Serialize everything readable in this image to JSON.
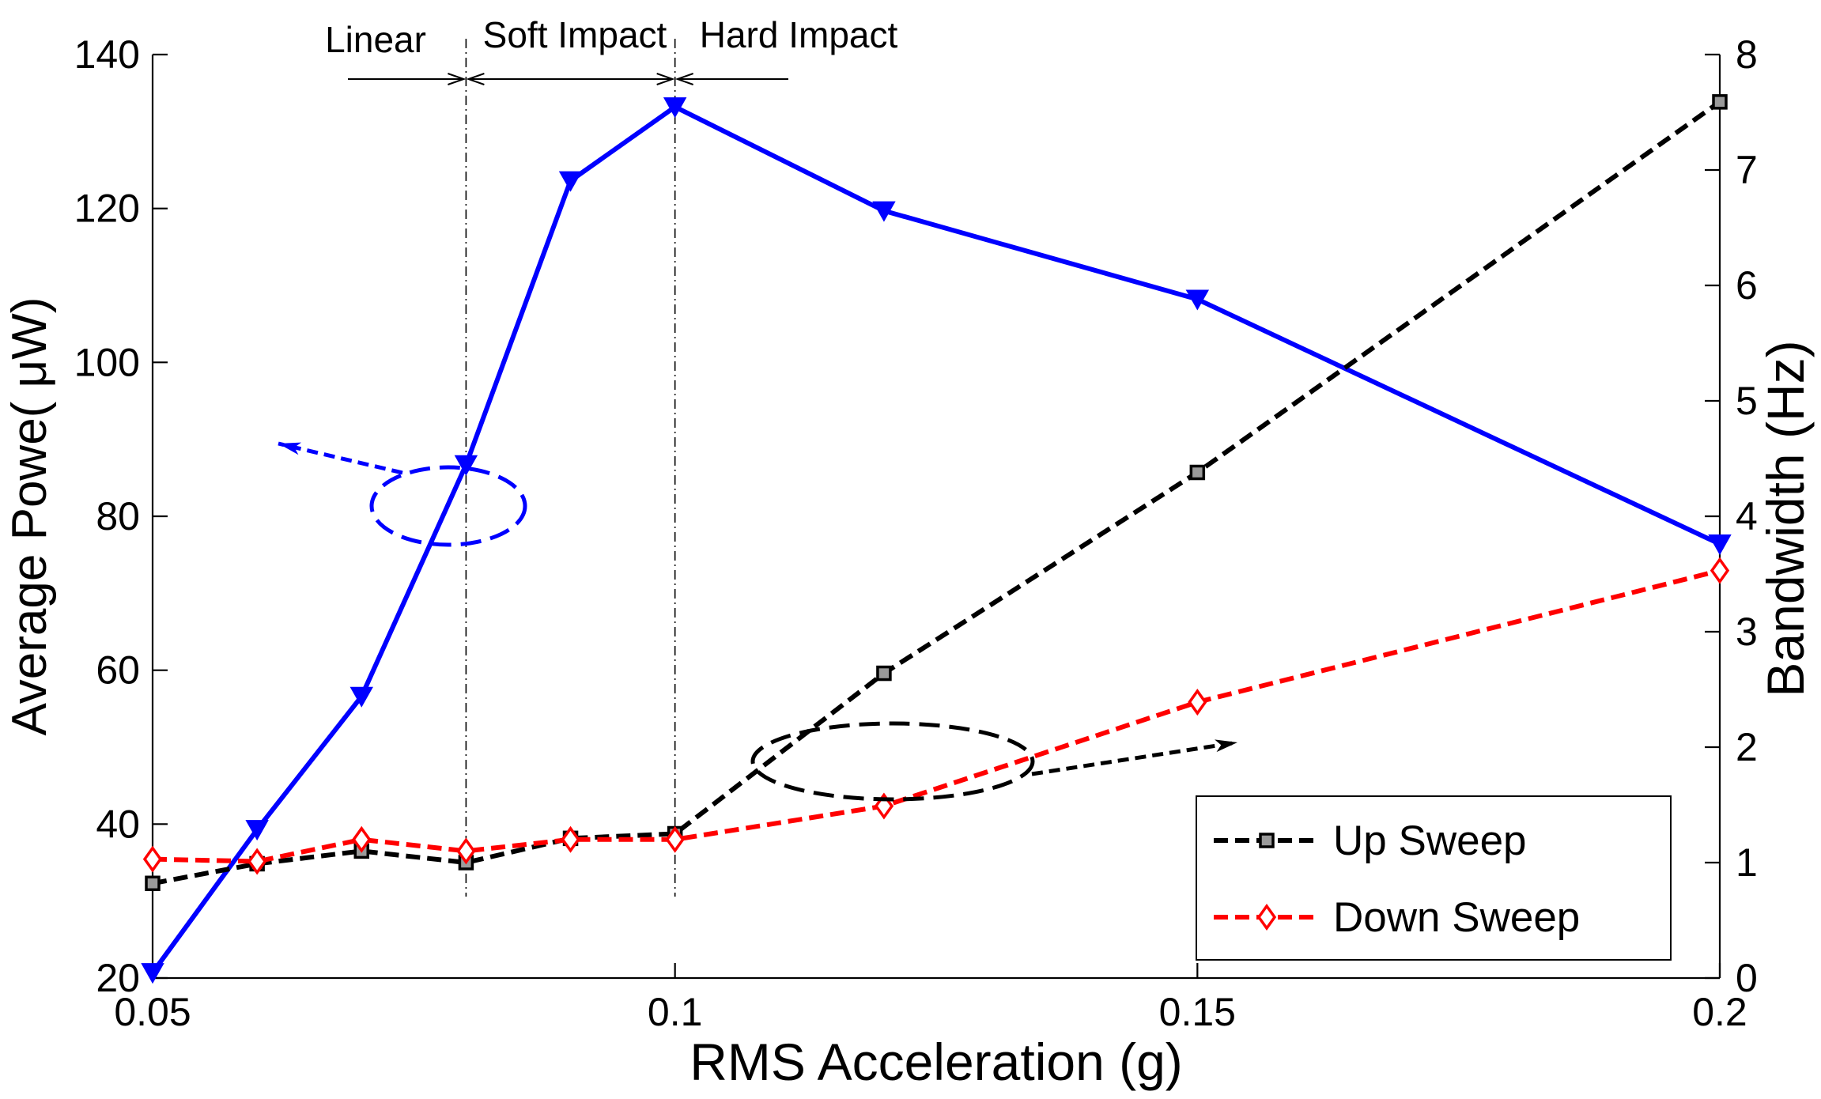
{
  "chart_data": {
    "type": "line",
    "xlabel": "RMS Acceleration (g)",
    "ylabel_left": "Average Powe( μW)",
    "ylabel_right": "Bandwidth (Hz)",
    "xlim": [
      0.05,
      0.2
    ],
    "ylim_left": [
      20,
      140
    ],
    "ylim_right": [
      0,
      8
    ],
    "xticks": [
      "0.05",
      "0.1",
      "0.15",
      "0.2"
    ],
    "yticks_left": [
      "20",
      "40",
      "60",
      "80",
      "100",
      "120",
      "140"
    ],
    "yticks_right": [
      "0",
      "1",
      "2",
      "3",
      "4",
      "5",
      "6",
      "7",
      "8"
    ],
    "grid": false,
    "x": [
      0.05,
      0.06,
      0.07,
      0.08,
      0.09,
      0.1,
      0.12,
      0.15,
      0.2
    ],
    "series": [
      {
        "y_axis": "left",
        "color": "#0000ff",
        "values": [
          20.7,
          39.3,
          56.6,
          86.7,
          123.6,
          133.2,
          119.7,
          108.2,
          76.4
        ]
      },
      {
        "name": "Up Sweep",
        "y_axis": "right",
        "color": "#000000",
        "values": [
          0.82,
          0.99,
          1.1,
          1.0,
          1.21,
          1.25,
          2.64,
          4.38,
          7.59
        ]
      },
      {
        "name": "Down Sweep",
        "y_axis": "right",
        "color": "#ff0000",
        "values": [
          1.03,
          1.01,
          1.2,
          1.1,
          1.2,
          1.2,
          1.49,
          2.39,
          3.53
        ]
      }
    ],
    "legend": {
      "position": "bottom-right"
    },
    "region_boundaries": [
      0.08,
      0.1
    ],
    "regions": [
      {
        "label": "Linear"
      },
      {
        "label": "Soft Impact"
      },
      {
        "label": "Hard Impact"
      }
    ]
  }
}
